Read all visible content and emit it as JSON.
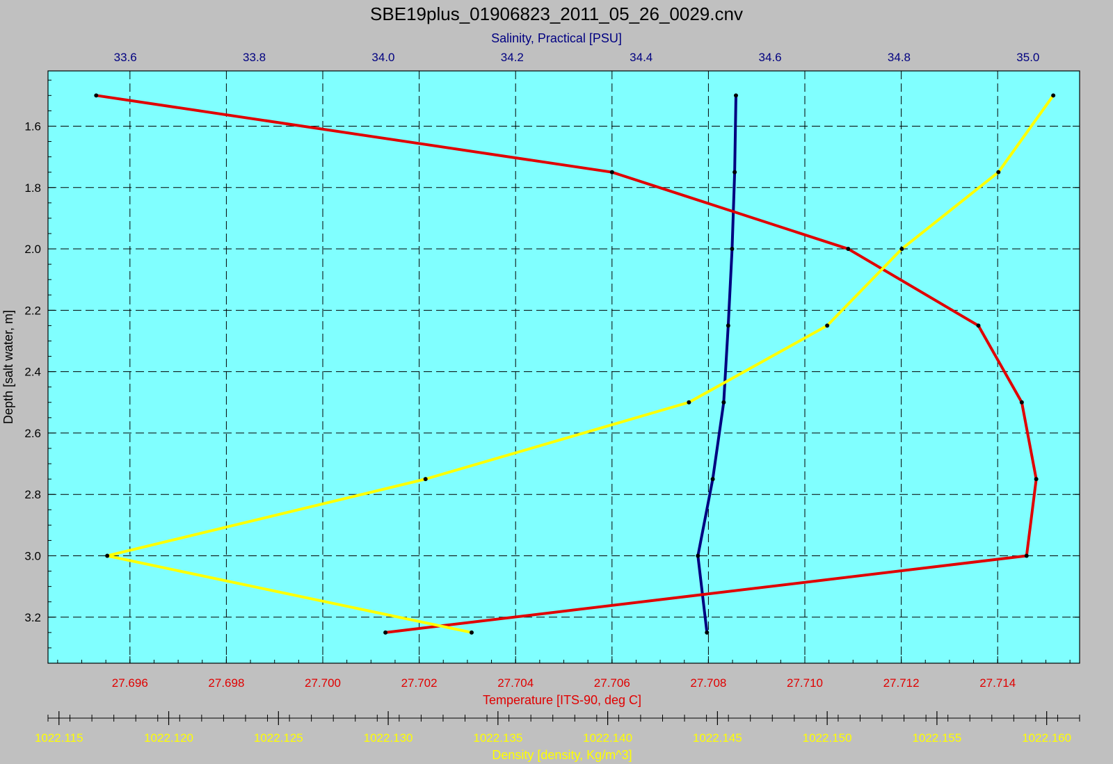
{
  "chart_data": {
    "type": "line",
    "title": "SBE19plus_01906823_2011_05_26_0029.cnv",
    "y_axis": {
      "label": "Depth [salt water, m]",
      "range": [
        1.42,
        3.35
      ],
      "ticks": [
        "1.6",
        "1.8",
        "2.0",
        "2.2",
        "2.4",
        "2.6",
        "2.8",
        "3.0",
        "3.2"
      ],
      "inverted": true
    },
    "salinity_axis": {
      "label": "Salinity, Practical [PSU]",
      "position": "top",
      "color": "#000080",
      "range": [
        33.48,
        35.08
      ],
      "ticks": [
        "33.6",
        "33.8",
        "34.0",
        "34.2",
        "34.4",
        "34.6",
        "34.8",
        "35.0"
      ]
    },
    "temperature_axis": {
      "label": "Temperature [ITS-90, deg C]",
      "position": "bottom",
      "color": "#e00000",
      "range": [
        27.6943,
        27.7157
      ],
      "ticks": [
        "27.696",
        "27.698",
        "27.700",
        "27.702",
        "27.704",
        "27.706",
        "27.708",
        "27.710",
        "27.712",
        "27.714"
      ]
    },
    "density_axis": {
      "label": "Density [density, Kg/m^3]",
      "position": "bottom-outer",
      "color": "#ffff00",
      "range": [
        1022.1145,
        1022.1615
      ],
      "ticks": [
        "1022.115",
        "1022.120",
        "1022.125",
        "1022.130",
        "1022.135",
        "1022.140",
        "1022.145",
        "1022.150",
        "1022.155",
        "1022.160"
      ]
    },
    "grid": true,
    "plot_background": "#80ffff",
    "series": [
      {
        "axis": "salinity_axis",
        "color": "#000080",
        "depth": [
          1.5,
          1.75,
          2.0,
          2.25,
          2.5,
          2.75,
          3.0,
          3.25
        ],
        "x": [
          34.547,
          34.545,
          34.541,
          34.535,
          34.528,
          34.511,
          34.488,
          34.502
        ]
      },
      {
        "axis": "temperature_axis",
        "color": "#e00000",
        "depth": [
          1.5,
          1.75,
          2.0,
          2.25,
          2.5,
          2.75,
          3.0,
          3.25
        ],
        "x": [
          27.6953,
          27.706,
          27.7109,
          27.7136,
          27.7145,
          27.7148,
          27.7146,
          27.7013
        ]
      },
      {
        "axis": "density_axis",
        "color": "#ffff00",
        "depth": [
          1.5,
          1.75,
          2.0,
          2.25,
          2.5,
          2.75,
          3.0,
          3.25
        ],
        "x": [
          1022.1603,
          1022.1578,
          1022.1534,
          1022.15,
          1022.1437,
          1022.1317,
          1022.1172,
          1022.1338
        ]
      }
    ]
  }
}
